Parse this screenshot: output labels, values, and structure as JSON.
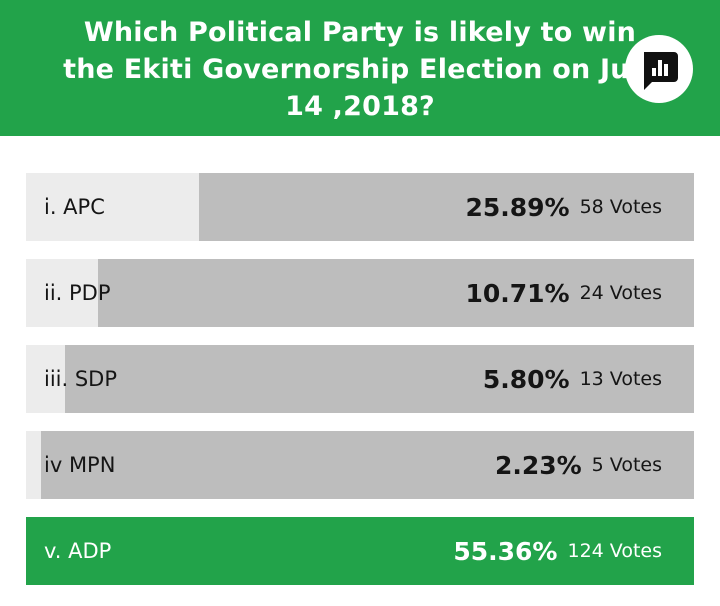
{
  "header": {
    "question": "Which Political Party is likely to win\nthe Ekiti Governorship Election on July\n14 ,2018?",
    "logo_icon": "poll-bar-chart-icon",
    "bg_color": "#22a34a"
  },
  "options": [
    {
      "label": "i. APC",
      "percent": "25.89%",
      "votes": "58 Votes",
      "share": 0.2589
    },
    {
      "label": "ii. PDP",
      "percent": "10.71%",
      "votes": "24 Votes",
      "share": 0.1071
    },
    {
      "label": "iii. SDP",
      "percent": "5.80%",
      "votes": "13 Votes",
      "share": 0.058
    },
    {
      "label": "iv MPN",
      "percent": "2.23%",
      "votes": "5 Votes",
      "share": 0.0223
    },
    {
      "label": "v. ADP",
      "percent": "55.36%",
      "votes": "124 Votes",
      "share": 0.5536,
      "winner": true
    }
  ],
  "colors": {
    "winner": "#22a34a",
    "fill": "#bdbdbd",
    "track": "#ececec"
  }
}
